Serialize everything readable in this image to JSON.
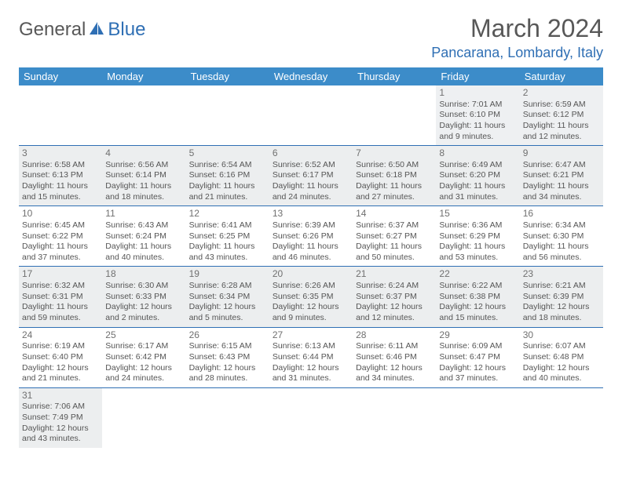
{
  "logo": {
    "text1": "General",
    "text2": "Blue"
  },
  "title": "March 2024",
  "location": "Pancarana, Lombardy, Italy",
  "colors": {
    "header_bg": "#3c8cc9",
    "accent": "#2f6fb4",
    "row_border": "#2f6fb4",
    "shade_bg": "#eceeef",
    "text": "#555555",
    "daynum": "#707070"
  },
  "weekdays": [
    "Sunday",
    "Monday",
    "Tuesday",
    "Wednesday",
    "Thursday",
    "Friday",
    "Saturday"
  ],
  "weeks": [
    [
      null,
      null,
      null,
      null,
      null,
      {
        "n": "1",
        "sr": "Sunrise: 7:01 AM",
        "ss": "Sunset: 6:10 PM",
        "dl": "Daylight: 11 hours and 9 minutes."
      },
      {
        "n": "2",
        "sr": "Sunrise: 6:59 AM",
        "ss": "Sunset: 6:12 PM",
        "dl": "Daylight: 11 hours and 12 minutes."
      }
    ],
    [
      {
        "n": "3",
        "sr": "Sunrise: 6:58 AM",
        "ss": "Sunset: 6:13 PM",
        "dl": "Daylight: 11 hours and 15 minutes."
      },
      {
        "n": "4",
        "sr": "Sunrise: 6:56 AM",
        "ss": "Sunset: 6:14 PM",
        "dl": "Daylight: 11 hours and 18 minutes."
      },
      {
        "n": "5",
        "sr": "Sunrise: 6:54 AM",
        "ss": "Sunset: 6:16 PM",
        "dl": "Daylight: 11 hours and 21 minutes."
      },
      {
        "n": "6",
        "sr": "Sunrise: 6:52 AM",
        "ss": "Sunset: 6:17 PM",
        "dl": "Daylight: 11 hours and 24 minutes."
      },
      {
        "n": "7",
        "sr": "Sunrise: 6:50 AM",
        "ss": "Sunset: 6:18 PM",
        "dl": "Daylight: 11 hours and 27 minutes."
      },
      {
        "n": "8",
        "sr": "Sunrise: 6:49 AM",
        "ss": "Sunset: 6:20 PM",
        "dl": "Daylight: 11 hours and 31 minutes."
      },
      {
        "n": "9",
        "sr": "Sunrise: 6:47 AM",
        "ss": "Sunset: 6:21 PM",
        "dl": "Daylight: 11 hours and 34 minutes."
      }
    ],
    [
      {
        "n": "10",
        "sr": "Sunrise: 6:45 AM",
        "ss": "Sunset: 6:22 PM",
        "dl": "Daylight: 11 hours and 37 minutes."
      },
      {
        "n": "11",
        "sr": "Sunrise: 6:43 AM",
        "ss": "Sunset: 6:24 PM",
        "dl": "Daylight: 11 hours and 40 minutes."
      },
      {
        "n": "12",
        "sr": "Sunrise: 6:41 AM",
        "ss": "Sunset: 6:25 PM",
        "dl": "Daylight: 11 hours and 43 minutes."
      },
      {
        "n": "13",
        "sr": "Sunrise: 6:39 AM",
        "ss": "Sunset: 6:26 PM",
        "dl": "Daylight: 11 hours and 46 minutes."
      },
      {
        "n": "14",
        "sr": "Sunrise: 6:37 AM",
        "ss": "Sunset: 6:27 PM",
        "dl": "Daylight: 11 hours and 50 minutes."
      },
      {
        "n": "15",
        "sr": "Sunrise: 6:36 AM",
        "ss": "Sunset: 6:29 PM",
        "dl": "Daylight: 11 hours and 53 minutes."
      },
      {
        "n": "16",
        "sr": "Sunrise: 6:34 AM",
        "ss": "Sunset: 6:30 PM",
        "dl": "Daylight: 11 hours and 56 minutes."
      }
    ],
    [
      {
        "n": "17",
        "sr": "Sunrise: 6:32 AM",
        "ss": "Sunset: 6:31 PM",
        "dl": "Daylight: 11 hours and 59 minutes."
      },
      {
        "n": "18",
        "sr": "Sunrise: 6:30 AM",
        "ss": "Sunset: 6:33 PM",
        "dl": "Daylight: 12 hours and 2 minutes."
      },
      {
        "n": "19",
        "sr": "Sunrise: 6:28 AM",
        "ss": "Sunset: 6:34 PM",
        "dl": "Daylight: 12 hours and 5 minutes."
      },
      {
        "n": "20",
        "sr": "Sunrise: 6:26 AM",
        "ss": "Sunset: 6:35 PM",
        "dl": "Daylight: 12 hours and 9 minutes."
      },
      {
        "n": "21",
        "sr": "Sunrise: 6:24 AM",
        "ss": "Sunset: 6:37 PM",
        "dl": "Daylight: 12 hours and 12 minutes."
      },
      {
        "n": "22",
        "sr": "Sunrise: 6:22 AM",
        "ss": "Sunset: 6:38 PM",
        "dl": "Daylight: 12 hours and 15 minutes."
      },
      {
        "n": "23",
        "sr": "Sunrise: 6:21 AM",
        "ss": "Sunset: 6:39 PM",
        "dl": "Daylight: 12 hours and 18 minutes."
      }
    ],
    [
      {
        "n": "24",
        "sr": "Sunrise: 6:19 AM",
        "ss": "Sunset: 6:40 PM",
        "dl": "Daylight: 12 hours and 21 minutes."
      },
      {
        "n": "25",
        "sr": "Sunrise: 6:17 AM",
        "ss": "Sunset: 6:42 PM",
        "dl": "Daylight: 12 hours and 24 minutes."
      },
      {
        "n": "26",
        "sr": "Sunrise: 6:15 AM",
        "ss": "Sunset: 6:43 PM",
        "dl": "Daylight: 12 hours and 28 minutes."
      },
      {
        "n": "27",
        "sr": "Sunrise: 6:13 AM",
        "ss": "Sunset: 6:44 PM",
        "dl": "Daylight: 12 hours and 31 minutes."
      },
      {
        "n": "28",
        "sr": "Sunrise: 6:11 AM",
        "ss": "Sunset: 6:46 PM",
        "dl": "Daylight: 12 hours and 34 minutes."
      },
      {
        "n": "29",
        "sr": "Sunrise: 6:09 AM",
        "ss": "Sunset: 6:47 PM",
        "dl": "Daylight: 12 hours and 37 minutes."
      },
      {
        "n": "30",
        "sr": "Sunrise: 6:07 AM",
        "ss": "Sunset: 6:48 PM",
        "dl": "Daylight: 12 hours and 40 minutes."
      }
    ],
    [
      {
        "n": "31",
        "sr": "Sunrise: 7:06 AM",
        "ss": "Sunset: 7:49 PM",
        "dl": "Daylight: 12 hours and 43 minutes."
      },
      null,
      null,
      null,
      null,
      null,
      null
    ]
  ]
}
